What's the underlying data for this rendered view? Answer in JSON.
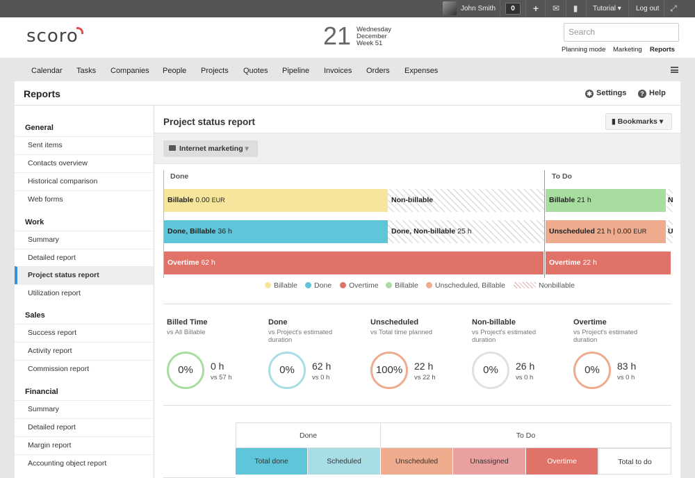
{
  "topbar": {
    "user_name": "John Smith",
    "notifications_count": "0",
    "tutorial_label": "Tutorial",
    "logout_label": "Log out"
  },
  "header": {
    "logo": "scoro",
    "date_day": "21",
    "date_weekday": "Wednesday",
    "date_month": "December",
    "date_week": "Week 51",
    "search_placeholder": "Search",
    "mode_links": [
      "Planning mode",
      "Marketing",
      "Reports"
    ]
  },
  "mainnav": [
    "Calendar",
    "Tasks",
    "Companies",
    "People",
    "Projects",
    "Quotes",
    "Pipeline",
    "Invoices",
    "Orders",
    "Expenses"
  ],
  "page": {
    "title": "Reports",
    "settings_label": "Settings",
    "help_label": "Help"
  },
  "sidebar": {
    "groups": [
      {
        "title": "General",
        "items": [
          "Sent items",
          "Contacts overview",
          "Historical comparison",
          "Web forms"
        ]
      },
      {
        "title": "Work",
        "items": [
          "Summary",
          "Detailed report",
          "Project status report",
          "Utilization report"
        ]
      },
      {
        "title": "Sales",
        "items": [
          "Success report",
          "Activity report",
          "Commission report"
        ]
      },
      {
        "title": "Financial",
        "items": [
          "Summary",
          "Detailed report",
          "Margin report",
          "Accounting object report"
        ]
      }
    ],
    "active_item": "Project status report"
  },
  "report": {
    "title": "Project status report",
    "bookmarks_label": "Bookmarks",
    "filter_label": "Internet marketing",
    "done_label": "Done",
    "todo_label": "To Do",
    "bars": {
      "billable": {
        "label": "Billable",
        "value": "0.00",
        "unit": "EUR"
      },
      "non_billable": {
        "label": "Non-billable"
      },
      "todo_billable": {
        "label": "Billable",
        "value": "21 h"
      },
      "todo_n": {
        "label": "N"
      },
      "done_billable": {
        "label": "Done, Billable",
        "value": "36 h"
      },
      "done_non_billable": {
        "label": "Done, Non-billable",
        "value": "25 h"
      },
      "unscheduled": {
        "label": "Unscheduled",
        "value": "21 h | 0.00",
        "unit": "EUR"
      },
      "todo_u": {
        "label": "U"
      },
      "overtime_done": {
        "label": "Overtime",
        "value": "62 h"
      },
      "overtime_todo": {
        "label": "Overtime",
        "value": "22 h"
      }
    },
    "legend": [
      "Billable",
      "Done",
      "Overtime",
      "Billable",
      "Unscheduled, Billable",
      "Nonbillable"
    ],
    "kpis": [
      {
        "title": "Billed Time",
        "sub": "vs All Billable",
        "pct": "0%",
        "value": "0 h",
        "vs": "vs 57 h"
      },
      {
        "title": "Done",
        "sub": "vs Project's estimated duration",
        "pct": "0%",
        "value": "62 h",
        "vs": "vs 0 h"
      },
      {
        "title": "Unscheduled",
        "sub": "vs Total time planned",
        "pct": "100%",
        "value": "22 h",
        "vs": "vs 22 h"
      },
      {
        "title": "Non-billable",
        "sub": "vs Project's estimated duration",
        "pct": "0%",
        "value": "26 h",
        "vs": "vs 0 h"
      },
      {
        "title": "Overtime",
        "sub": "vs Project's estimated duration",
        "pct": "0%",
        "value": "83 h",
        "vs": "vs 0 h"
      }
    ],
    "table": {
      "group_done": "Done",
      "group_todo": "To Do",
      "columns": [
        "Total done",
        "Scheduled",
        "Unscheduled",
        "Unassigned",
        "Overtime",
        "Total to do"
      ]
    }
  },
  "colors": {
    "billable": "#f6e59a",
    "done": "#5ec6d8",
    "overtime": "#e07268",
    "todo_billable": "#a8dda0",
    "unscheduled": "#eeab8d",
    "accent": "#3a8fd6"
  }
}
